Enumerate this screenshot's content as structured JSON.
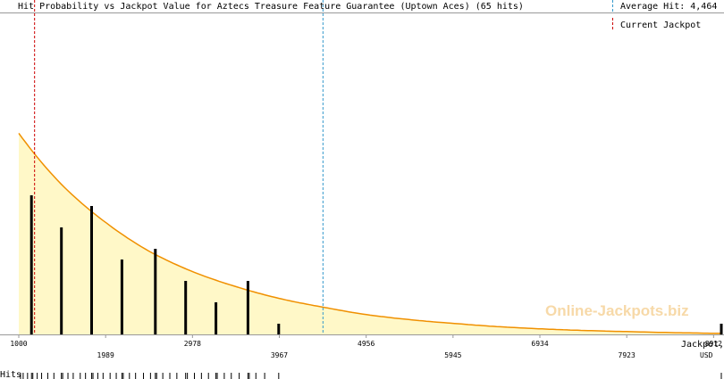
{
  "chart_data": {
    "type": "bar",
    "title": "Hit Probability vs Jackpot Value for Aztecs Treasure Feature Guarantee (Uptown Aces) (65 hits)",
    "xlabel_line1": "Jackpot,",
    "xlabel_line2": "USD",
    "hits_label": "Hits",
    "watermark": "Online-Jackpots.biz",
    "legend": {
      "average_label": "Average Hit: 4,464",
      "current_label": "Current Jackpot"
    },
    "average_hit": 4464,
    "current_jackpot": 1180,
    "xlim": [
      1000,
      9000
    ],
    "x_ticks_upper": [
      "1000",
      "2978",
      "4956",
      "6934",
      "8912"
    ],
    "x_ticks_upper_values": [
      1000,
      2978,
      4956,
      6934,
      8912
    ],
    "x_ticks_lower": [
      "1989",
      "3967",
      "5945",
      "7923"
    ],
    "x_ticks_lower_values": [
      1989,
      3967,
      5945,
      7923
    ],
    "ylim": [
      0,
      30
    ],
    "bars": {
      "x": [
        1145,
        1485,
        1830,
        2175,
        2555,
        2900,
        3245,
        3610,
        3960,
        9000
      ],
      "values": [
        13,
        10,
        12,
        7,
        8,
        5,
        3,
        5,
        1,
        1
      ]
    },
    "curve": {
      "x": [
        1000,
        1500,
        2000,
        2500,
        3000,
        3500,
        4000,
        4500,
        5000,
        6000,
        7000,
        8000,
        9000
      ],
      "values": [
        18.8,
        13.9,
        10.4,
        7.7,
        5.8,
        4.4,
        3.3,
        2.5,
        1.8,
        1.0,
        0.5,
        0.25,
        0.1
      ]
    },
    "hits_rug_x": [
      1020,
      1050,
      1100,
      1145,
      1160,
      1210,
      1260,
      1330,
      1400,
      1485,
      1500,
      1560,
      1620,
      1700,
      1760,
      1830,
      1845,
      1900,
      1960,
      2040,
      2110,
      2175,
      2190,
      2260,
      2330,
      2420,
      2500,
      2555,
      2570,
      2640,
      2720,
      2800,
      2900,
      2920,
      3000,
      3080,
      3160,
      3245,
      3260,
      3340,
      3420,
      3510,
      3610,
      3625,
      3700,
      3800,
      3960,
      9000
    ],
    "colors": {
      "curve": "#f09000",
      "fill": "#fff8c8",
      "bars": "#000000",
      "average_line": "#3399cc",
      "current_line": "#cc0000",
      "watermark": "#f7d9a8"
    }
  }
}
